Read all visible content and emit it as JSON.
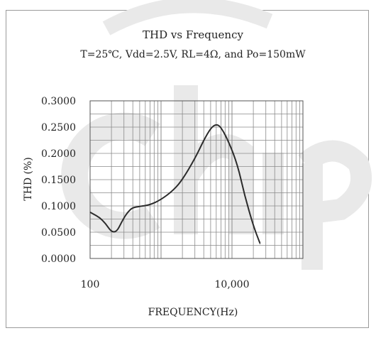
{
  "chart_data": {
    "type": "line",
    "title": "THD vs Frequency",
    "subtitle": "T=25℃, Vdd=2.5V, RL=4Ω, and Po=150mW",
    "xlabel": "FREQUENCY(Hz)",
    "ylabel": "THD (%)",
    "x_scale": "log",
    "xlim": [
      100,
      100000
    ],
    "ylim": [
      0,
      0.3
    ],
    "grid": true,
    "x_tick_labels": [
      {
        "value": 100,
        "label": "100"
      },
      {
        "value": 10000,
        "label": "10,000"
      }
    ],
    "y_tick_labels": [
      {
        "value": 0.0,
        "label": "0.0000"
      },
      {
        "value": 0.05,
        "label": "0.0500"
      },
      {
        "value": 0.1,
        "label": "0.1000"
      },
      {
        "value": 0.15,
        "label": "0.1500"
      },
      {
        "value": 0.2,
        "label": "0.2000"
      },
      {
        "value": 0.25,
        "label": "0.2500"
      },
      {
        "value": 0.3,
        "label": "0.3000"
      }
    ],
    "series": [
      {
        "line_color": "#2b2b2b",
        "x": [
          100,
          150,
          220,
          300,
          350,
          400,
          500,
          700,
          1000,
          1500,
          2000,
          3000,
          4000,
          5000,
          6000,
          7000,
          9000,
          12000,
          15000,
          20000,
          25000
        ],
        "y": [
          0.088,
          0.075,
          0.042,
          0.078,
          0.09,
          0.097,
          0.099,
          0.102,
          0.112,
          0.13,
          0.15,
          0.19,
          0.225,
          0.248,
          0.256,
          0.25,
          0.222,
          0.178,
          0.121,
          0.062,
          0.028
        ]
      }
    ]
  }
}
